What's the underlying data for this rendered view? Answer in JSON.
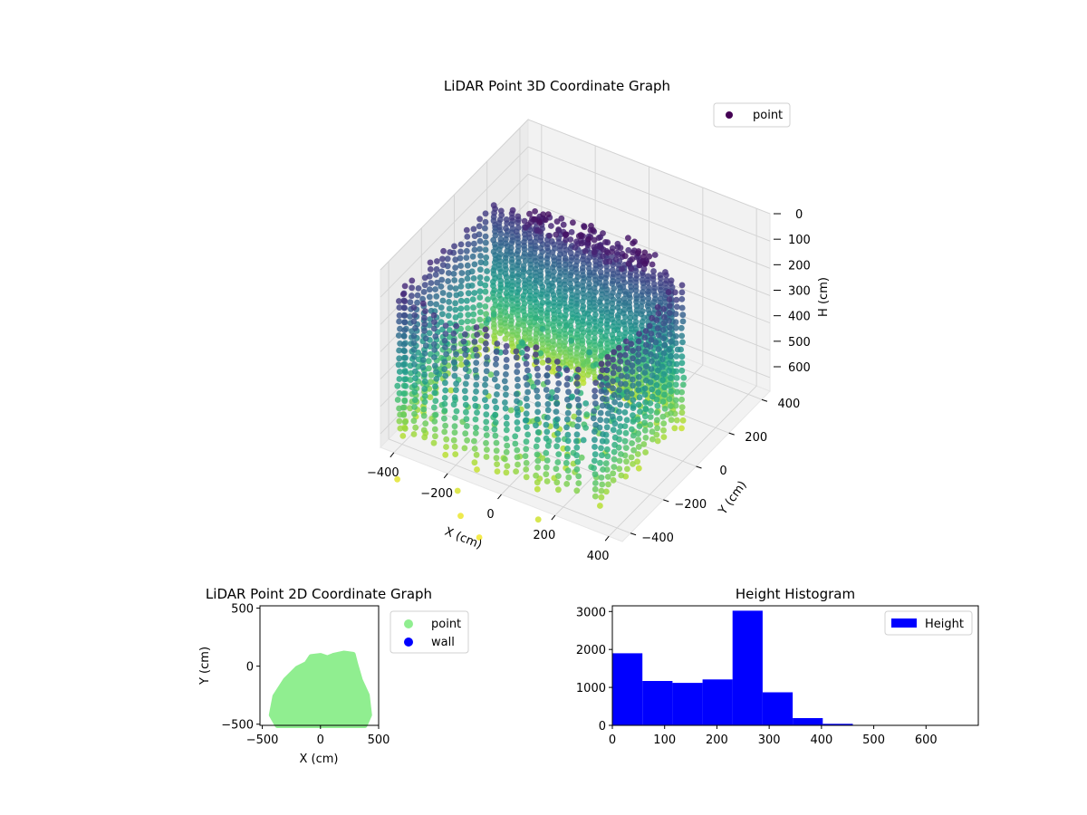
{
  "chart_data": [
    {
      "type": "scatter3d",
      "title": "LiDAR Point 3D Coordinate Graph",
      "xlabel": "X (cm)",
      "ylabel": "Y (cm)",
      "zlabel": "H (cm)",
      "x_ticks": [
        -400,
        -200,
        0,
        200,
        400
      ],
      "y_ticks": [
        -400,
        -200,
        0,
        200,
        400
      ],
      "z_ticks": [
        0,
        100,
        200,
        300,
        400,
        500,
        600
      ],
      "xlim": [
        -450,
        450
      ],
      "ylim": [
        -450,
        450
      ],
      "zlim": [
        0,
        650
      ],
      "z_inverted": true,
      "colormap": "viridis",
      "legend": {
        "entries": [
          {
            "label": "point",
            "color": "#440154"
          }
        ],
        "position": "top-right"
      },
      "grid": true
    },
    {
      "type": "scatter",
      "title": "LiDAR Point 2D Coordinate Graph",
      "xlabel": "X (cm)",
      "ylabel": "Y (cm)",
      "x_ticks": [
        -500,
        0,
        500
      ],
      "y_ticks": [
        -500,
        0,
        500
      ],
      "xlim": [
        -520,
        500
      ],
      "ylim": [
        -510,
        520
      ],
      "series": [
        {
          "name": "point",
          "color": "#90ee90"
        },
        {
          "name": "wall",
          "color": "#0000ff"
        }
      ],
      "legend_position": "outside-right"
    },
    {
      "type": "bar",
      "title": "Height Histogram",
      "bin_edges": [
        0,
        57.5,
        115,
        172.5,
        230,
        287.5,
        345,
        402.5,
        460,
        517.5,
        575,
        632.5,
        690
      ],
      "values": [
        1900,
        1170,
        1120,
        1210,
        3020,
        870,
        190,
        40,
        4,
        2,
        1,
        1
      ],
      "xlim": [
        0,
        700
      ],
      "ylim": [
        0,
        3150
      ],
      "x_ticks": [
        0,
        100,
        200,
        300,
        400,
        500,
        600
      ],
      "y_ticks": [
        0,
        1000,
        2000,
        3000
      ],
      "series": [
        {
          "name": "Height",
          "color": "#0000ff"
        }
      ],
      "legend_position": "top-right"
    }
  ]
}
